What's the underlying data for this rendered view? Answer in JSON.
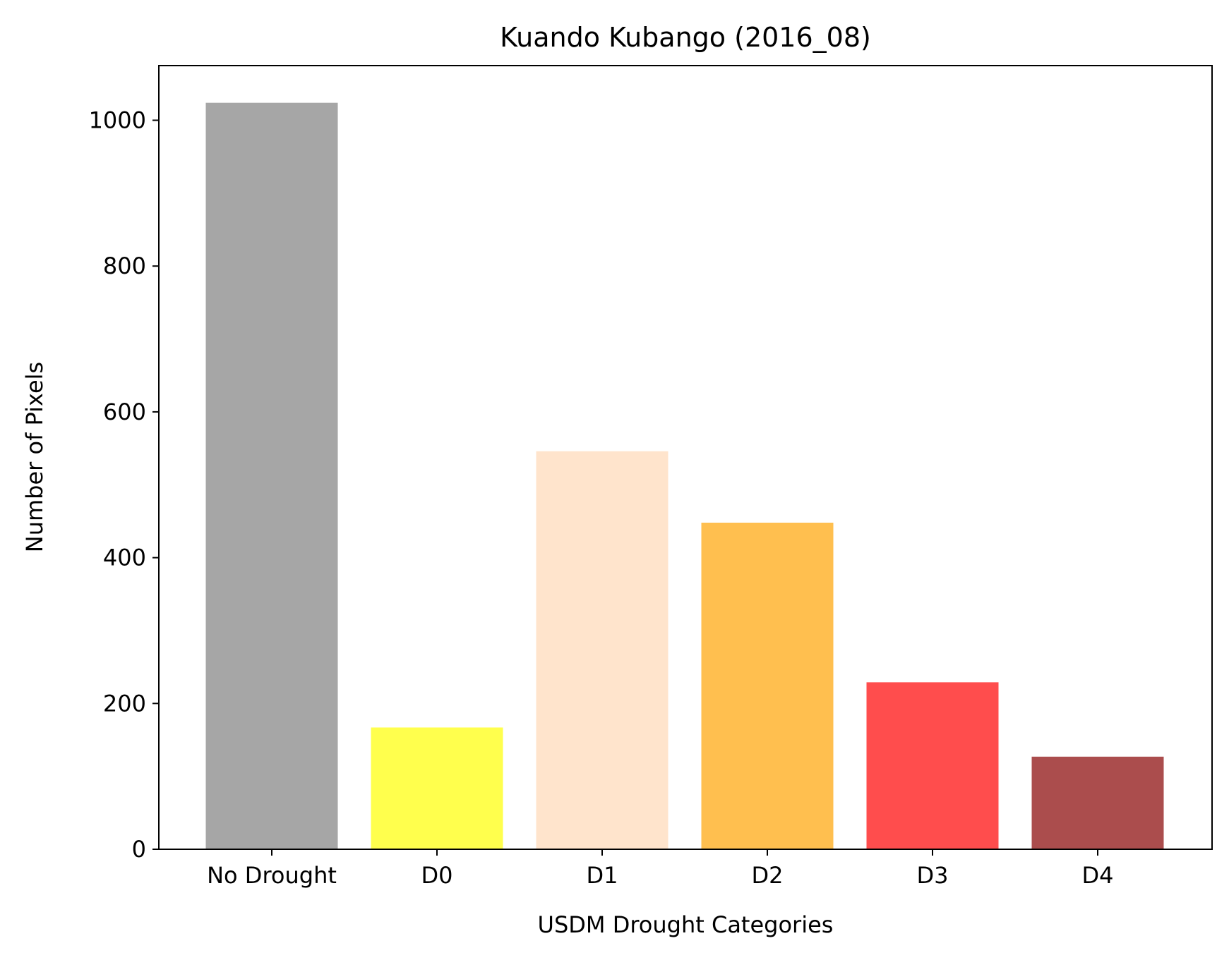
{
  "chart_data": {
    "type": "bar",
    "title": "Kuando Kubango (2016_08)",
    "xlabel": "USDM Drought Categories",
    "ylabel": "Number of Pixels",
    "categories": [
      "No Drought",
      "D0",
      "D1",
      "D2",
      "D3",
      "D4"
    ],
    "values": [
      1024,
      167,
      546,
      448,
      229,
      127
    ],
    "colors": [
      "#a6a6a6",
      "#ffff4d",
      "#ffe4cc",
      "#ffbf4f",
      "#ff4d4d",
      "#ab4d4d"
    ],
    "yticks": [
      0,
      200,
      400,
      600,
      800,
      1000
    ],
    "ylim": [
      0,
      1075
    ],
    "grid": false,
    "legend": false
  }
}
